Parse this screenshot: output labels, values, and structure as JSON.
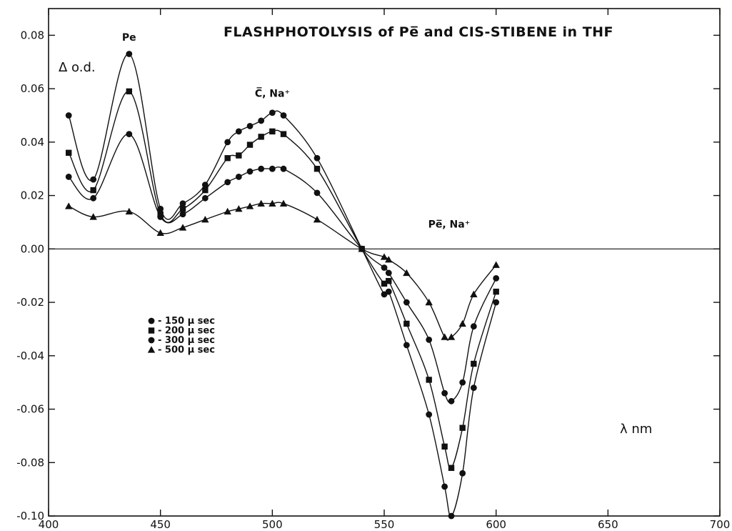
{
  "chart_data": {
    "type": "line",
    "title": "FLASHPHOTOLYSIS of Pe̅ and CIS-STIBENE in THF",
    "ylabel": "Δ o.d.",
    "xlabel": "λ nm",
    "xlim": [
      400,
      700
    ],
    "ylim": [
      -0.1,
      0.09
    ],
    "x_ticks": [
      "400",
      "450",
      "500",
      "550",
      "600",
      "650",
      "700"
    ],
    "y_ticks": [
      "0.08",
      "0.06",
      "0.04",
      "0.02",
      "0.00",
      "-0.02",
      "-0.04",
      "-0.06",
      "-0.08",
      "-0.10"
    ],
    "zero_line": true,
    "annotations": [
      {
        "text": "Pe",
        "x": 436,
        "y": 0.078
      },
      {
        "text": "C̅, Na⁺",
        "x": 500,
        "y": 0.057
      },
      {
        "text": "Pe̅, Na⁺",
        "x": 579,
        "y": 0.008
      }
    ],
    "legend": {
      "position": "left-middle",
      "entries": [
        "- 150 μ sec",
        "- 200 μ sec",
        "- 300 μ sec",
        "- 500 μ sec"
      ],
      "markers": [
        "circle",
        "square",
        "circle",
        "triangle"
      ]
    },
    "series": [
      {
        "name": "- 150 μ sec",
        "marker": "circle",
        "x": [
          409,
          420,
          436,
          450,
          460,
          470,
          480,
          485,
          490,
          495,
          500,
          505,
          520,
          540,
          550,
          552,
          560,
          570,
          577,
          580,
          585,
          590,
          600
        ],
        "y": [
          0.05,
          0.026,
          0.073,
          0.015,
          0.017,
          0.024,
          0.04,
          0.044,
          0.046,
          0.048,
          0.051,
          0.05,
          0.034,
          0.0,
          -0.017,
          -0.016,
          -0.036,
          -0.062,
          -0.089,
          -0.1,
          -0.084,
          -0.052,
          -0.02
        ]
      },
      {
        "name": "- 200 μ sec",
        "marker": "square",
        "x": [
          409,
          420,
          436,
          450,
          460,
          470,
          480,
          485,
          490,
          495,
          500,
          505,
          520,
          540,
          550,
          552,
          560,
          570,
          577,
          580,
          585,
          590,
          600
        ],
        "y": [
          0.036,
          0.022,
          0.059,
          0.013,
          0.015,
          0.022,
          0.034,
          0.035,
          0.039,
          0.042,
          0.044,
          0.043,
          0.03,
          0.0,
          -0.013,
          -0.012,
          -0.028,
          -0.049,
          -0.074,
          -0.082,
          -0.067,
          -0.043,
          -0.016
        ]
      },
      {
        "name": "- 300 μ sec",
        "marker": "circle",
        "x": [
          409,
          420,
          436,
          450,
          460,
          470,
          480,
          485,
          490,
          495,
          500,
          505,
          520,
          540,
          550,
          552,
          560,
          570,
          577,
          580,
          585,
          590,
          600
        ],
        "y": [
          0.027,
          0.019,
          0.043,
          0.012,
          0.013,
          0.019,
          0.025,
          0.027,
          0.029,
          0.03,
          0.03,
          0.03,
          0.021,
          0.0,
          -0.007,
          -0.009,
          -0.02,
          -0.034,
          -0.054,
          -0.057,
          -0.05,
          -0.029,
          -0.011
        ]
      },
      {
        "name": "- 500 μ sec",
        "marker": "triangle",
        "x": [
          409,
          420,
          436,
          450,
          460,
          470,
          480,
          485,
          490,
          495,
          500,
          505,
          520,
          540,
          550,
          552,
          560,
          570,
          577,
          580,
          585,
          590,
          600
        ],
        "y": [
          0.016,
          0.012,
          0.014,
          0.006,
          0.008,
          0.011,
          0.014,
          0.015,
          0.016,
          0.017,
          0.017,
          0.017,
          0.011,
          0.0,
          -0.003,
          -0.004,
          -0.009,
          -0.02,
          -0.033,
          -0.033,
          -0.028,
          -0.017,
          -0.006
        ]
      }
    ]
  }
}
